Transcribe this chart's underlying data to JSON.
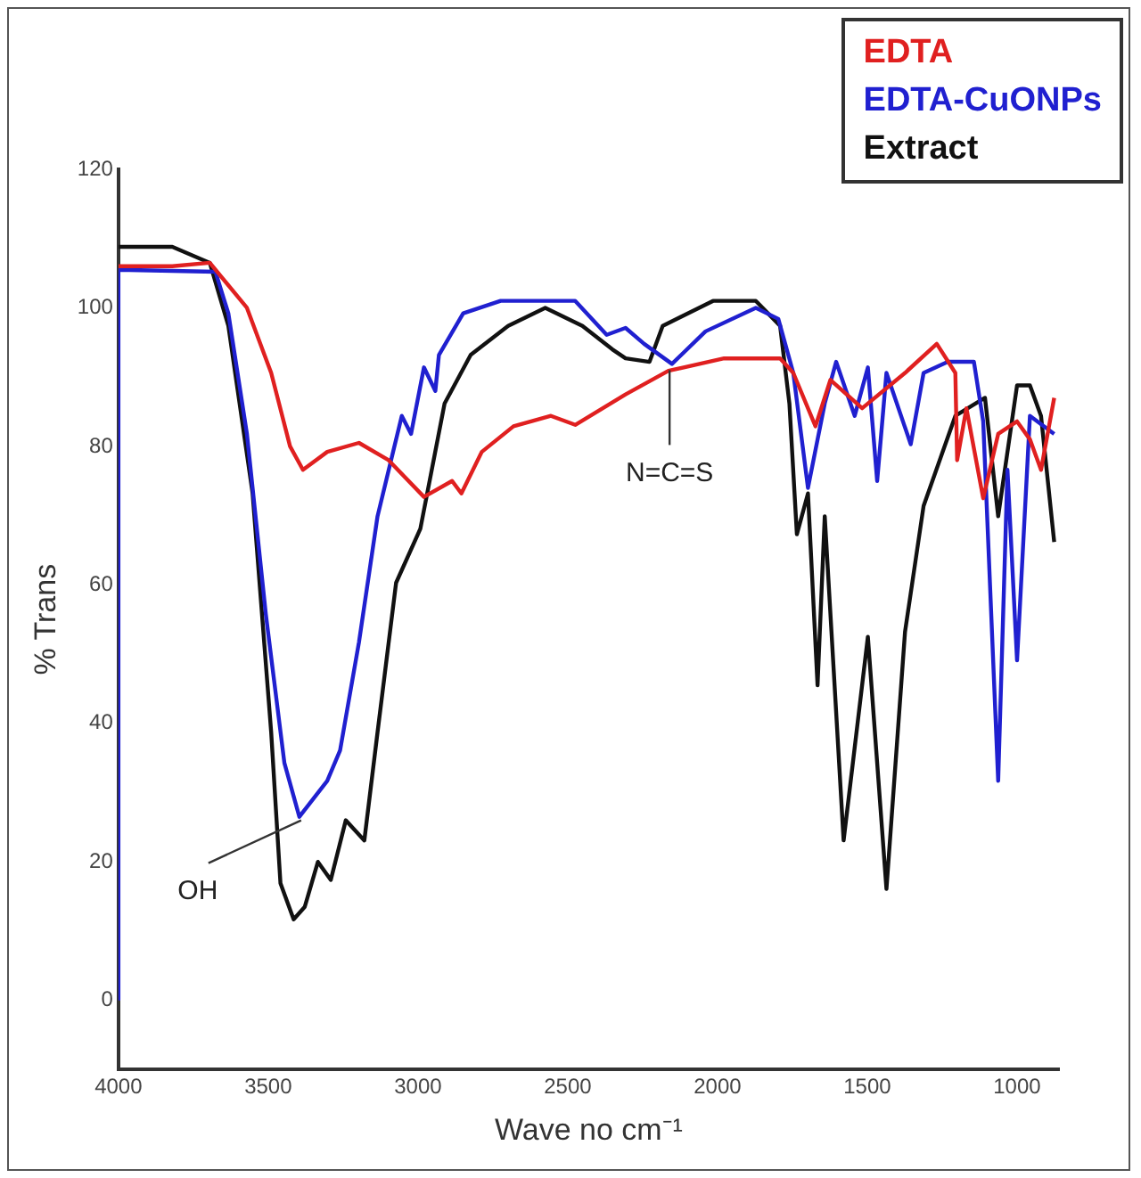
{
  "chart_data": {
    "type": "line",
    "xlabel": "Wave no cm⁻¹",
    "ylabel": "% Trans",
    "xlim": [
      4000,
      860
    ],
    "ylim": [
      -10,
      120
    ],
    "xticks": [
      4000,
      3500,
      3000,
      2500,
      2000,
      1500,
      1000
    ],
    "yticks": [
      0,
      20,
      40,
      60,
      80,
      100,
      120
    ],
    "grid": false,
    "legend": "top right",
    "marker": "none",
    "line_style": "solid",
    "annotations": [
      {
        "text": "OH",
        "x": 3390,
        "y": 26
      },
      {
        "text": "N=C=S",
        "x": 2160,
        "y": 91
      }
    ],
    "series": [
      {
        "name": "EDTA",
        "color": "#e02020",
        "x": [
          4000,
          3820,
          3695,
          3571,
          3490,
          3427,
          3384,
          3303,
          3197,
          3098,
          2980,
          2886,
          2855,
          2787,
          2681,
          2556,
          2475,
          2307,
          2164,
          1978,
          1791,
          1747,
          1673,
          1623,
          1517,
          1374,
          1268,
          1206,
          1200,
          1169,
          1113,
          1063,
          1000,
          957,
          920,
          876
        ],
        "values": [
          106,
          106,
          106.5,
          100,
          90.6,
          80,
          76.6,
          79.2,
          80.5,
          78,
          72.7,
          75,
          73.2,
          79.2,
          82.9,
          84.4,
          83.1,
          87.5,
          90.9,
          92.7,
          92.7,
          90.6,
          82.9,
          89.6,
          85.5,
          90.6,
          94.8,
          90.6,
          78,
          85.5,
          72.5,
          81.8,
          83.6,
          81,
          76.6,
          87
        ]
      },
      {
        "name": "EDTA-CuONPs",
        "color": "#2020d0",
        "x": [
          4000,
          4000,
          3676,
          3633,
          3571,
          3508,
          3446,
          3396,
          3303,
          3260,
          3197,
          3135,
          3054,
          3023,
          2980,
          2942,
          2930,
          2849,
          2724,
          2475,
          2370,
          2307,
          2245,
          2152,
          2040,
          1872,
          1797,
          1747,
          1698,
          1642,
          1604,
          1542,
          1498,
          1467,
          1436,
          1355,
          1312,
          1231,
          1144,
          1113,
          1063,
          1032,
          1000,
          957,
          876
        ],
        "values": [
          0,
          105.5,
          105.2,
          99.2,
          81.8,
          55.8,
          34.3,
          26.5,
          31.7,
          36.1,
          51.7,
          69.9,
          84.4,
          81.8,
          91.4,
          88,
          93.2,
          99.2,
          101,
          101,
          96.1,
          97.1,
          94.8,
          91.9,
          96.6,
          100,
          98.4,
          90.6,
          74,
          86.2,
          92.2,
          84.4,
          91.4,
          75,
          90.6,
          80.3,
          90.6,
          92.2,
          92.2,
          83.6,
          31.7,
          76.6,
          49.1,
          84.4,
          81.8
        ]
      },
      {
        "name": "Extract",
        "color": "#111111",
        "x": [
          4000,
          3820,
          3695,
          3633,
          3552,
          3490,
          3459,
          3415,
          3378,
          3334,
          3291,
          3241,
          3179,
          3135,
          3073,
          2992,
          2911,
          2824,
          2699,
          2575,
          2451,
          2351,
          2307,
          2227,
          2183,
          2015,
          1872,
          1791,
          1760,
          1735,
          1698,
          1666,
          1642,
          1579,
          1498,
          1436,
          1374,
          1312,
          1206,
          1107,
          1063,
          1000,
          957,
          920,
          876
        ],
        "values": [
          108.8,
          108.8,
          106.5,
          97.4,
          73.2,
          38.7,
          16.9,
          11.7,
          13.5,
          20,
          17.4,
          26,
          23.1,
          38.7,
          60.3,
          68.1,
          86.2,
          93.2,
          97.4,
          100,
          97.4,
          94,
          92.7,
          92.2,
          97.4,
          101,
          101,
          97.4,
          86.2,
          67.3,
          73.2,
          45.5,
          69.9,
          23.1,
          52.5,
          16.1,
          53.2,
          71.4,
          84.4,
          87,
          69.9,
          88.8,
          88.8,
          84.4,
          66.2
        ]
      }
    ]
  }
}
